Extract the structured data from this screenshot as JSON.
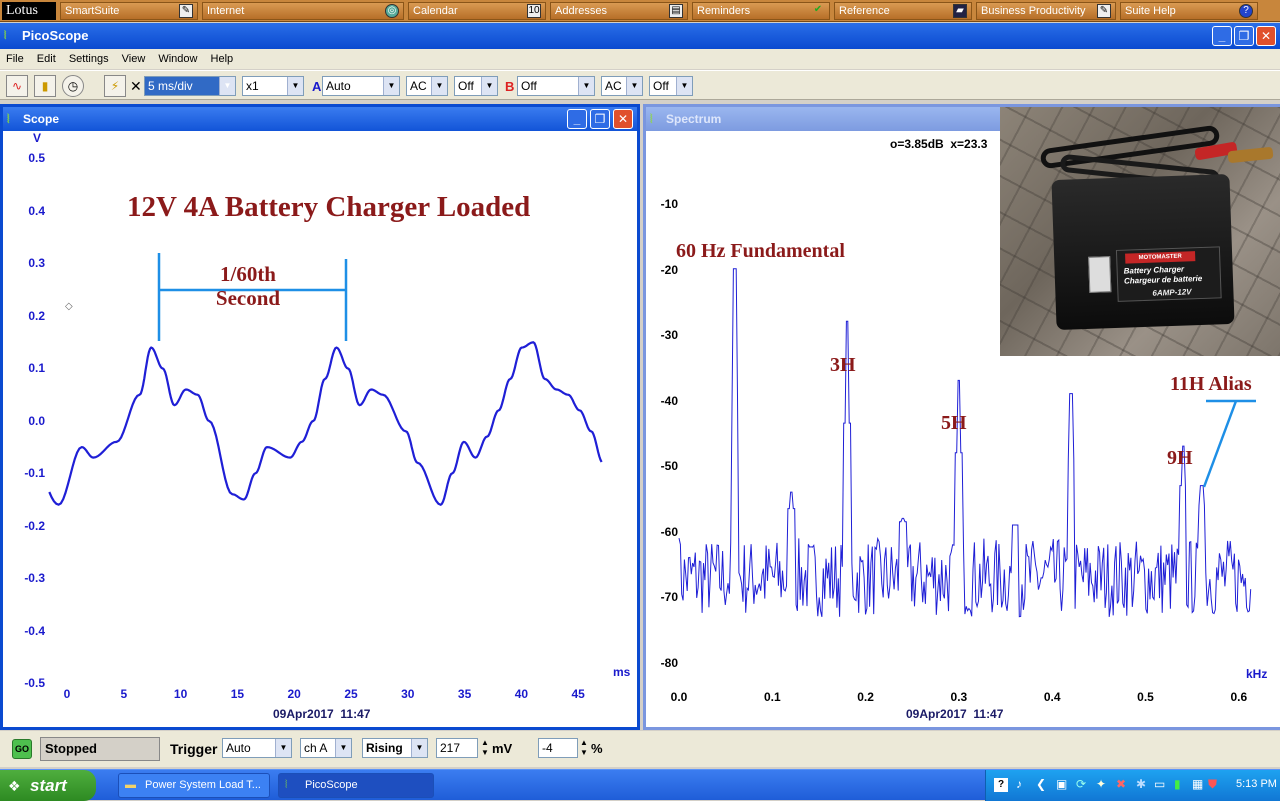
{
  "lotus": {
    "logo": "Lotus",
    "items": [
      "SmartSuite",
      "Internet",
      "Calendar",
      "Addresses",
      "Reminders",
      "Reference",
      "Business Productivity",
      "Suite Help"
    ]
  },
  "app": {
    "title": "PicoScope"
  },
  "menu": [
    "File",
    "Edit",
    "Settings",
    "View",
    "Window",
    "Help"
  ],
  "toolbar": {
    "timebase": "5 ms/div",
    "multiplier": "x1",
    "chA_label": "A",
    "chA_range": "Auto",
    "chA_coupling": "AC",
    "chA_extra": "Off",
    "chB_label": "B",
    "chB_range": "Off",
    "chB_coupling": "AC",
    "chB_extra": "Off"
  },
  "scope": {
    "title": "Scope",
    "y_unit": "V",
    "x_unit": "ms",
    "y_ticks": [
      "0.5",
      "0.4",
      "0.3",
      "0.2",
      "0.1",
      "0.0",
      "-0.1",
      "-0.2",
      "-0.3",
      "-0.4",
      "-0.5"
    ],
    "x_ticks": [
      "0",
      "5",
      "10",
      "15",
      "20",
      "25",
      "30",
      "35",
      "40",
      "45"
    ],
    "timestamp": "09Apr2017  11:47",
    "annotation_title": "12V 4A Battery Charger Loaded",
    "annotation_period_line1": "1/60th",
    "annotation_period_line2": "Second"
  },
  "spectrum": {
    "title": "Spectrum",
    "readout": "o=3.85dB  x=23.3",
    "x_unit": "kHz",
    "y_ticks": [
      "-10",
      "-20",
      "-30",
      "-40",
      "-50",
      "-60",
      "-70",
      "-80"
    ],
    "x_ticks": [
      "0.0",
      "0.1",
      "0.2",
      "0.3",
      "0.4",
      "0.5",
      "0.6"
    ],
    "timestamp": "09Apr2017  11:47",
    "labels": {
      "fundamental": "60 Hz Fundamental",
      "h3": "3H",
      "h5": "5H",
      "h9": "9H",
      "h11": "11H Alias"
    },
    "photo": {
      "brand": "MOTOMASTER",
      "line1": "Battery Charger",
      "line2": "Chargeur de batterie",
      "rating": "6AMP-12V"
    }
  },
  "chart_data": [
    {
      "type": "line",
      "title": "12V 4A Battery Charger Loaded",
      "xlabel": "ms",
      "ylabel": "V",
      "xlim": [
        -1,
        48
      ],
      "ylim": [
        -0.5,
        0.5
      ],
      "grid": false,
      "series": [
        {
          "x": [
            -2,
            0,
            2,
            3,
            5,
            7,
            8,
            9,
            10,
            11,
            12,
            13,
            15,
            16,
            17,
            18,
            20,
            21,
            22,
            23,
            24,
            25,
            26,
            27,
            28,
            30,
            31,
            33,
            34,
            35,
            36,
            37,
            38,
            39,
            40,
            41,
            42,
            43,
            44,
            45,
            46,
            47
          ],
          "values": [
            -0.09,
            -0.16,
            -0.05,
            -0.07,
            -0.04,
            0.05,
            0.14,
            0.1,
            0.03,
            0.06,
            0.05,
            0.0,
            -0.14,
            -0.15,
            -0.1,
            -0.05,
            -0.07,
            -0.04,
            0.0,
            0.08,
            0.14,
            0.1,
            0.03,
            0.06,
            0.05,
            -0.02,
            -0.08,
            -0.16,
            -0.1,
            -0.04,
            -0.07,
            -0.03,
            0.02,
            0.08,
            0.14,
            0.15,
            0.08,
            0.06,
            0.05,
            0.02,
            -0.02,
            -0.08
          ]
        }
      ]
    },
    {
      "type": "line",
      "xlabel": "kHz",
      "xlim": [
        0,
        0.62
      ],
      "ylim": [
        -80,
        -5
      ],
      "grid": false,
      "peaks": [
        {
          "f": 0.06,
          "db": -20
        },
        {
          "f": 0.12,
          "db": -54
        },
        {
          "f": 0.18,
          "db": -28
        },
        {
          "f": 0.24,
          "db": -58
        },
        {
          "f": 0.3,
          "db": -37
        },
        {
          "f": 0.36,
          "db": -59
        },
        {
          "f": 0.42,
          "db": -39
        },
        {
          "f": 0.54,
          "db": -47
        },
        {
          "f": 0.56,
          "db": -53
        }
      ],
      "noise_floor_db": -67
    }
  ],
  "status": {
    "state": "Stopped",
    "trigger_label": "Trigger",
    "trigger_mode": "Auto",
    "trigger_channel": "ch A",
    "trigger_edge": "Rising",
    "trigger_level": "217",
    "level_unit": "mV",
    "pretrigger": "-4",
    "pre_unit": "%"
  },
  "taskbar": {
    "start": "start",
    "tasks": [
      "Power System Load T...",
      "PicoScope"
    ],
    "clock": "5:13 PM"
  }
}
